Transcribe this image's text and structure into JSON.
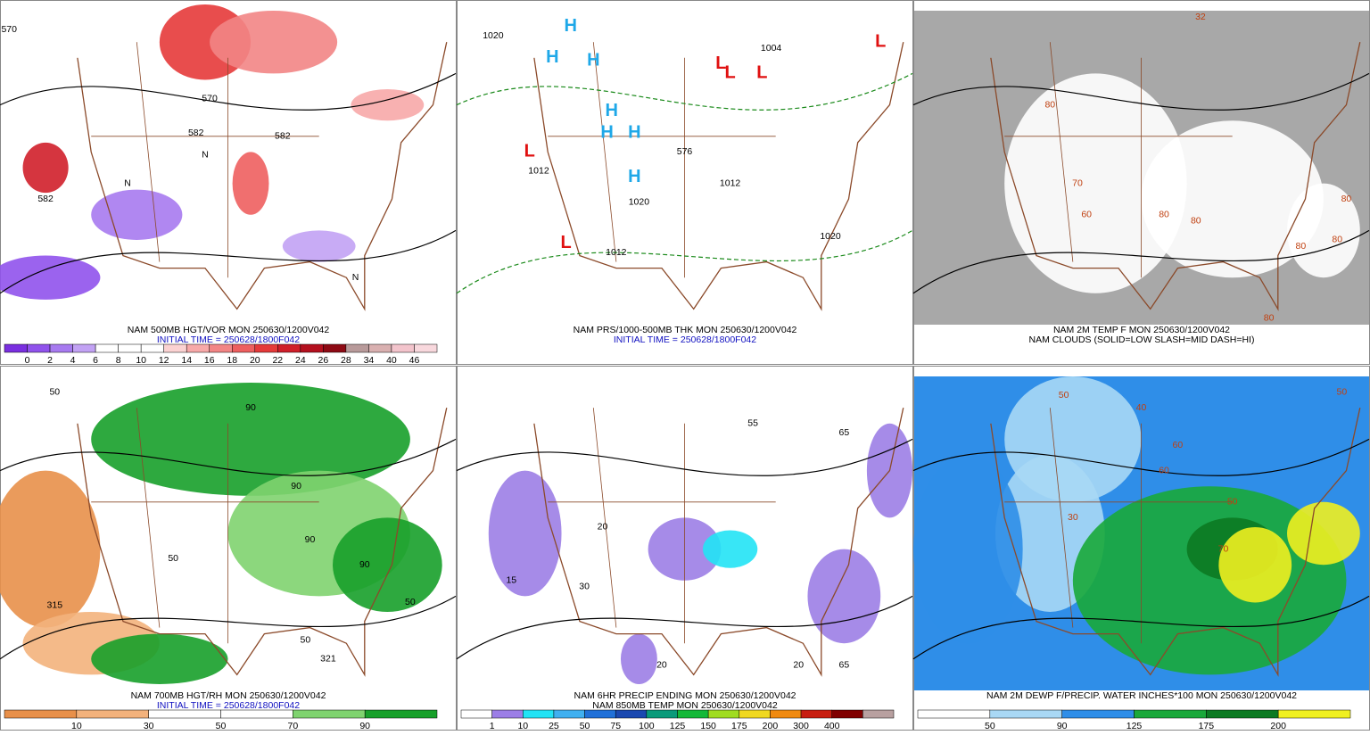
{
  "panels": [
    {
      "caption": [
        "NAM 500MB HGT/VOR MON 250630/1200V042",
        "INITIAL TIME = 250628/1800F042"
      ],
      "map_labels": [
        "570",
        "582",
        "570",
        "582",
        "582",
        "N",
        "N",
        "N"
      ],
      "colorbar": {
        "labels": [
          "0",
          "2",
          "4",
          "6",
          "8",
          "10",
          "12",
          "14",
          "16",
          "18",
          "20",
          "22",
          "24",
          "26",
          "28",
          "34",
          "40",
          "46"
        ],
        "colors": [
          "#7a2fe0",
          "#9052ec",
          "#a77af0",
          "#c2a2f4",
          "#ffffff",
          "#ffffff",
          "#ffffff",
          "#fbd2d2",
          "#f7a9a9",
          "#f28585",
          "#ee5f5f",
          "#e53a3a",
          "#d01f2a",
          "#b4101e",
          "#8e0a14",
          "#b89a9a",
          "#d9b0b0",
          "#f3c4cc",
          "#f8d8dd"
        ]
      }
    },
    {
      "caption": [
        "NAM PRS/1000-500MB THK MON 250630/1200V042",
        "INITIAL TIME = 250628/1800F042"
      ],
      "map_labels": [
        "H",
        "H",
        "H",
        "H",
        "H",
        "H",
        "H",
        "L",
        "L",
        "L",
        "L",
        "L",
        "L",
        "1020",
        "1020",
        "1012",
        "1012",
        "1004",
        "1012",
        "1020",
        "576"
      ]
    },
    {
      "caption": [
        "NAM 2M TEMP F MON 250630/1200V042",
        "NAM CLOUDS (SOLID=LOW SLASH=MID DASH=HI)"
      ],
      "map_labels": [
        "80",
        "80",
        "70",
        "60",
        "80",
        "80",
        "80",
        "32",
        "80",
        "80"
      ]
    },
    {
      "caption": [
        "NAM 700MB HGT/RH MON 250630/1200V042",
        "INITIAL TIME = 250628/1800F042"
      ],
      "map_labels": [
        "50",
        "90",
        "315",
        "50",
        "90",
        "321",
        "50",
        "90",
        "90",
        "50"
      ],
      "colorbar": {
        "labels": [
          "10",
          "30",
          "50",
          "70",
          "90"
        ],
        "colors": [
          "#e8904a",
          "#f3b27c",
          "#ffffff",
          "#ffffff",
          "#7fd36f",
          "#17a02a"
        ]
      }
    },
    {
      "caption": [
        "NAM 6HR PRECIP ENDING MON 250630/1200V042",
        "NAM 850MB TEMP MON 250630/1200V042"
      ],
      "map_labels": [
        "55",
        "65",
        "20",
        "30",
        "20",
        "20",
        "15",
        "65"
      ],
      "colorbar": {
        "labels": [
          "1",
          "10",
          "25",
          "50",
          "75",
          "100",
          "125",
          "150",
          "175",
          "200",
          "300",
          "400"
        ],
        "colors": [
          "#ffffff",
          "#9c7ee6",
          "#22e3f5",
          "#40b0f0",
          "#2070d8",
          "#1a48b0",
          "#0a9a7a",
          "#14b838",
          "#a0dc20",
          "#f0d820",
          "#f08a10",
          "#c81e10",
          "#800000",
          "#b8a0a0"
        ]
      }
    },
    {
      "caption": [
        "NAM 2M DEWP F/PRECIP. WATER INCHES*100 MON 250630/1200V042"
      ],
      "map_labels": [
        "50",
        "40",
        "50",
        "60",
        "50",
        "30",
        "60",
        "70"
      ],
      "colorbar": {
        "labels": [
          "50",
          "90",
          "125",
          "175",
          "200"
        ],
        "colors": [
          "#ffffff",
          "#a9d8f5",
          "#2f8ee8",
          "#1aa83a",
          "#0c7a22",
          "#f0f020"
        ]
      }
    }
  ]
}
